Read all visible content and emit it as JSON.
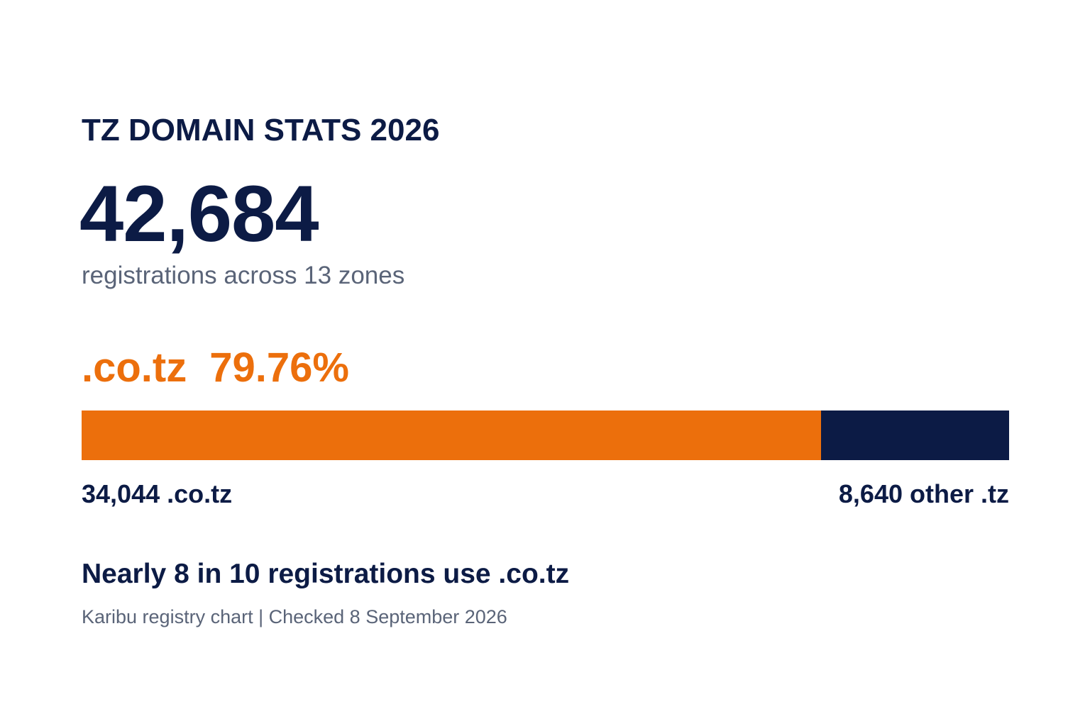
{
  "eyebrow": "TZ DOMAIN STATS 2026",
  "total": {
    "value": "42,684",
    "caption": "registrations across 13 zones"
  },
  "share": {
    "zone": ".co.tz",
    "percent": "79.76%"
  },
  "labels": {
    "left": "34,044 .co.tz",
    "right": "8,640 other .tz"
  },
  "headline": "Nearly 8 in 10 registrations use .co.tz",
  "source": "Karibu registry chart | Checked 8 September 2026",
  "colors": {
    "accent": "#ec6f0c",
    "navy": "#0c1b45",
    "muted": "#5a6478"
  },
  "chart_data": {
    "type": "bar",
    "categories": [
      ".co.tz",
      "other .tz"
    ],
    "values": [
      34044,
      8640
    ],
    "stacked": true,
    "orientation": "horizontal",
    "total": 42684,
    "share_percent": 79.76
  }
}
